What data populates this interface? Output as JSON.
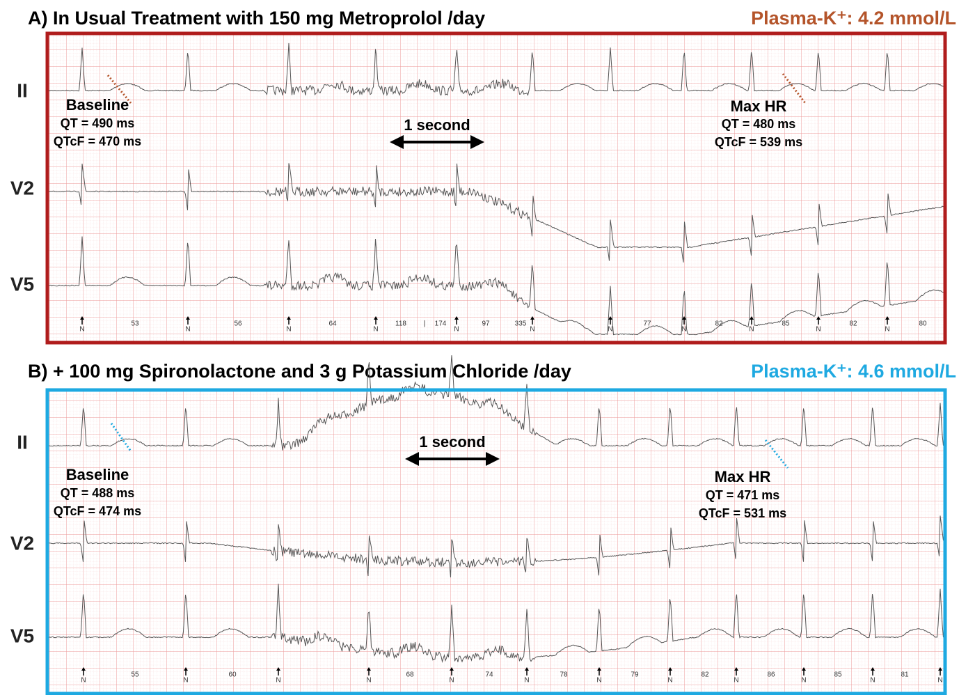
{
  "panels": [
    {
      "title": "A) In Usual Treatment with 150 mg Metroprolol /day",
      "plasma_k": "Plasma-K⁺: 4.2 mmol/L",
      "leads": [
        "II",
        "V2",
        "V5"
      ],
      "baseline": {
        "label": "Baseline",
        "qt": "QT = 490 ms",
        "qtcf": "QTcF = 470 ms"
      },
      "max_hr": {
        "label": "Max HR",
        "qt": "QT = 480 ms",
        "qtcf": "QTcF = 539 ms"
      },
      "scale_label": "1 second",
      "beat_labels": [
        "N",
        "53",
        "N",
        "56",
        "N",
        "64",
        "N",
        "118",
        "|",
        "174",
        "N",
        "97",
        "335",
        "N",
        "N",
        "77",
        "N",
        "82",
        "N",
        "85",
        "N",
        "82",
        "N",
        "80"
      ]
    },
    {
      "title": "B) + 100 mg Spironolactone and 3 g Potassium Chloride /day",
      "plasma_k": "Plasma-K⁺: 4.6 mmol/L",
      "leads": [
        "II",
        "V2",
        "V5"
      ],
      "baseline": {
        "label": "Baseline",
        "qt": "QT = 488 ms",
        "qtcf": "QTcF = 474 ms"
      },
      "max_hr": {
        "label": "Max HR",
        "qt": "QT = 471 ms",
        "qtcf": "QTcF = 531 ms"
      },
      "scale_label": "1 second",
      "beat_labels": [
        "N",
        "55",
        "N",
        "60",
        "N",
        "N",
        "68",
        "N",
        "74",
        "N",
        "78",
        "N",
        "79",
        "N",
        "82",
        "N",
        "86",
        "N",
        "85",
        "N",
        "81",
        "N"
      ]
    }
  ]
}
